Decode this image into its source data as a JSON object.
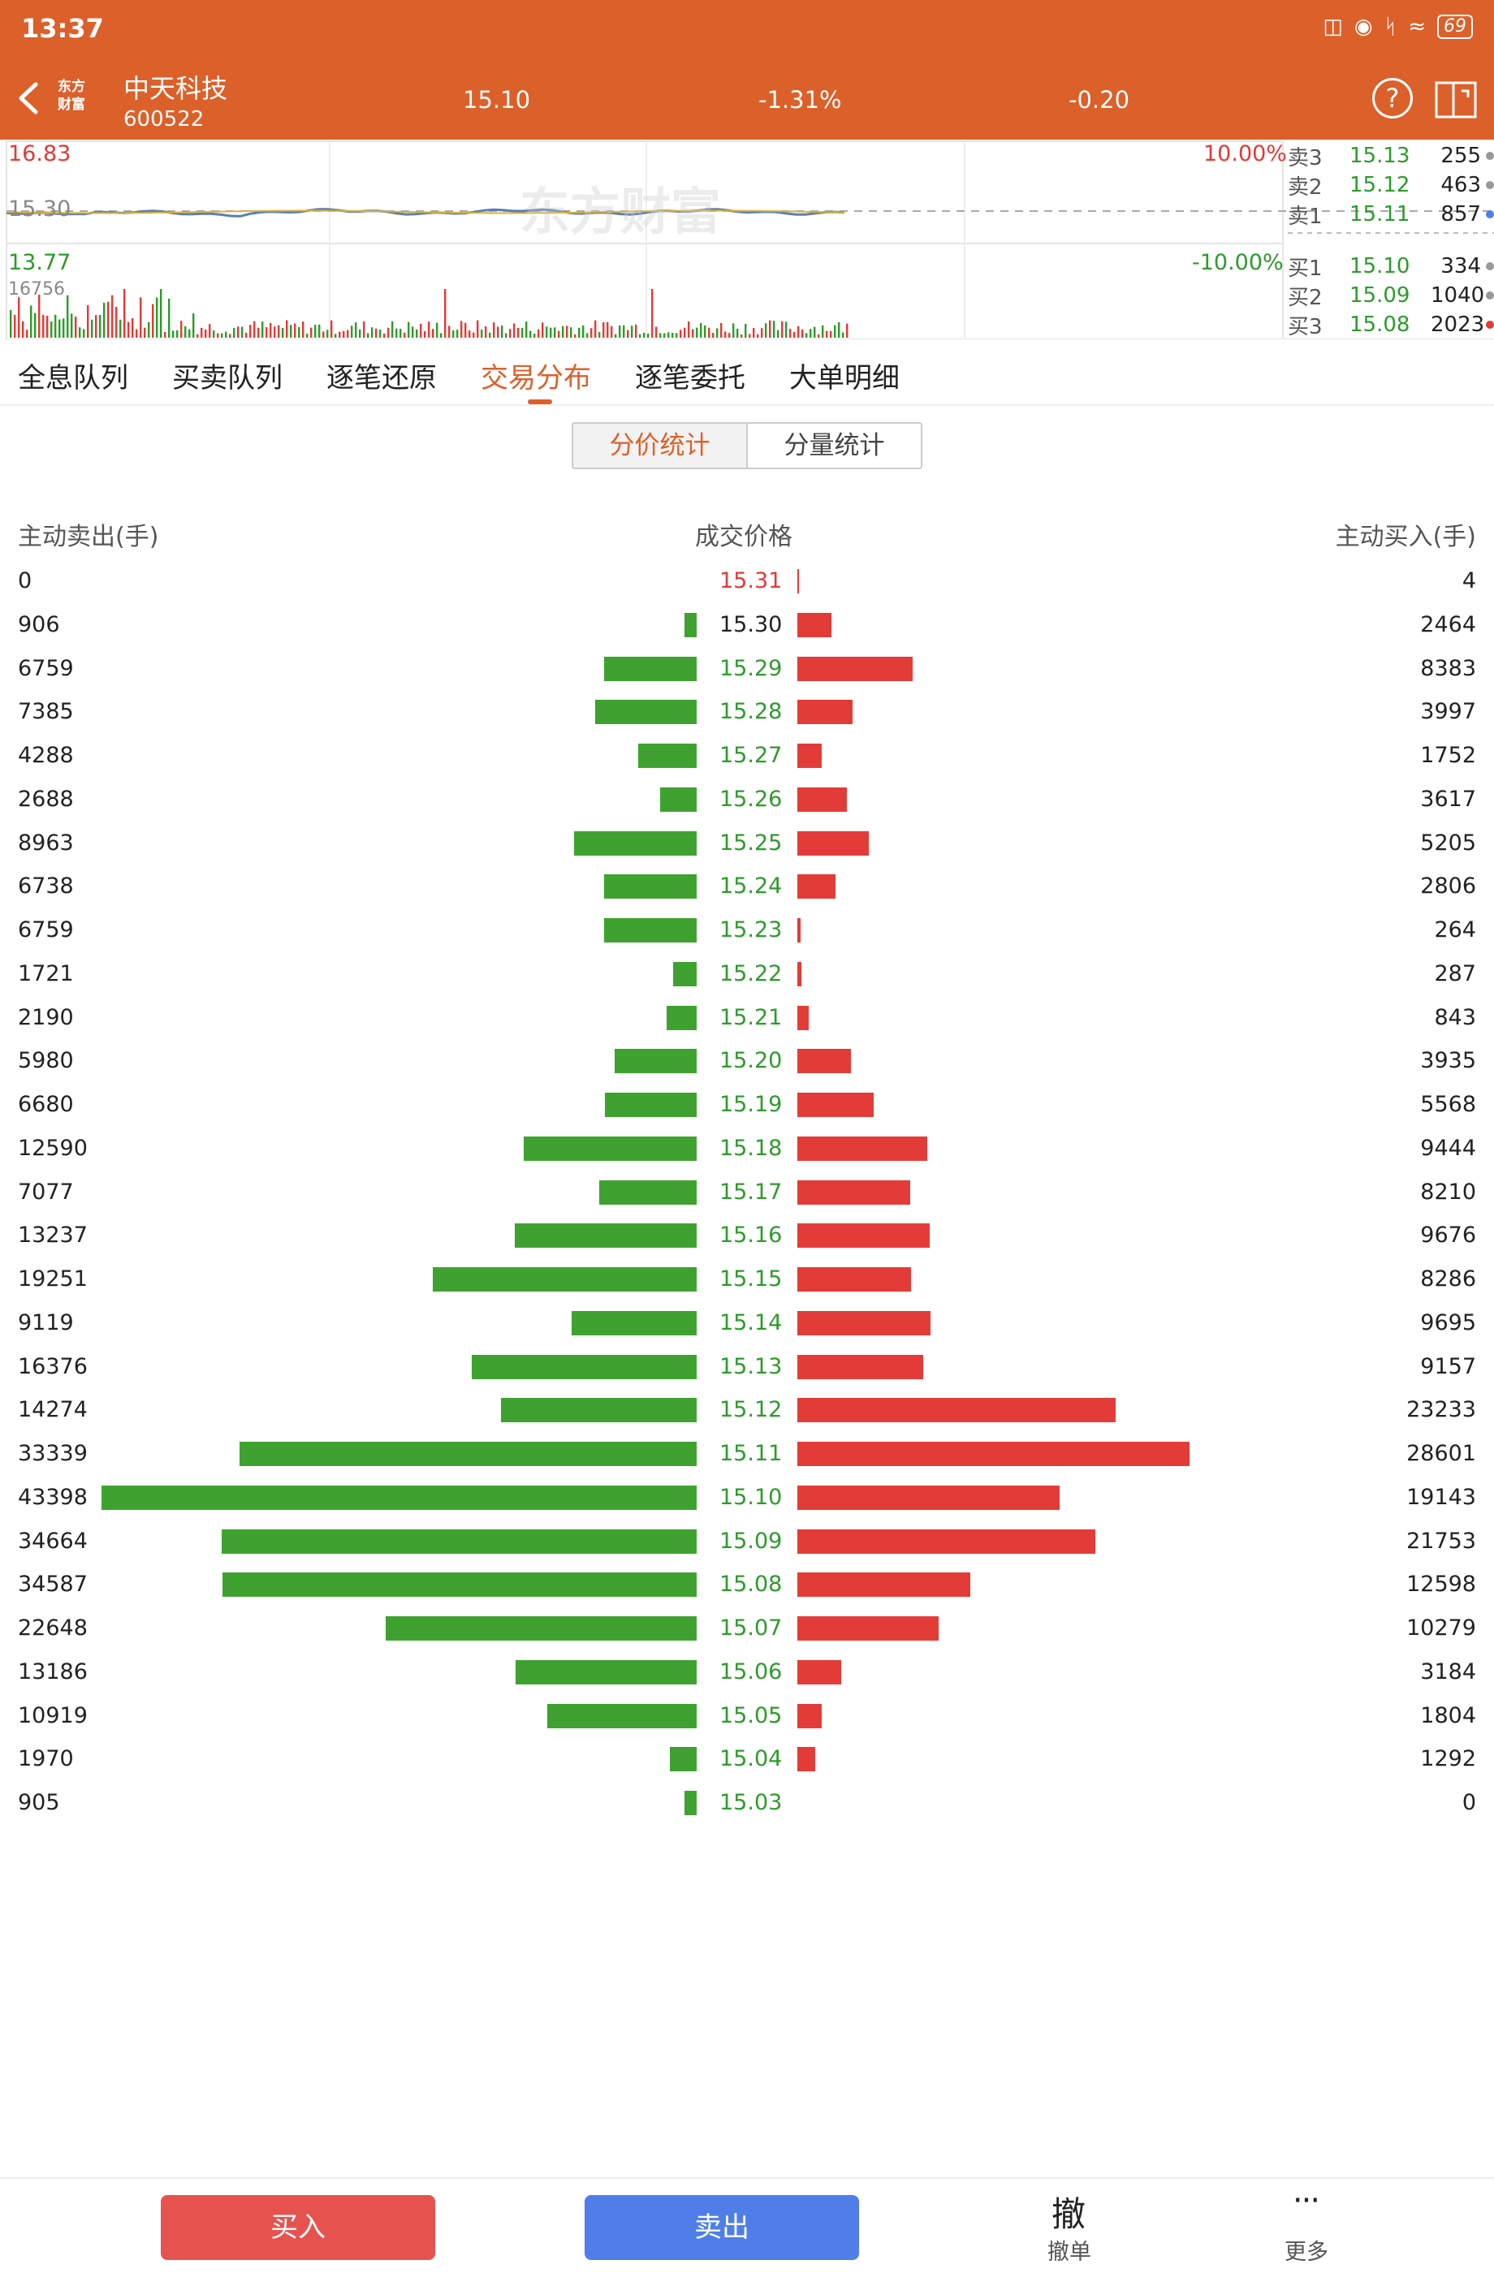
{
  "status_bar": {
    "time": "13:37",
    "battery": "69"
  },
  "header": {
    "logo_line1": "东方",
    "logo_line2": "财富",
    "stock_name": "中天科技",
    "stock_code": "600522",
    "price": "15.10",
    "change_pct": "-1.31%",
    "change": "-0.20"
  },
  "mini_chart": {
    "limit_up": "16.83",
    "limit_up_pct": "10.00%",
    "prev_close": "15.30",
    "limit_down": "13.77",
    "limit_down_pct": "-10.00%",
    "volume_max": "16756",
    "watermark": "东方财富"
  },
  "order_book": {
    "asks": [
      {
        "label": "卖3",
        "price": "15.13",
        "volume": "255",
        "dot": "#999999"
      },
      {
        "label": "卖2",
        "price": "15.12",
        "volume": "463",
        "dot": "#999999"
      },
      {
        "label": "卖1",
        "price": "15.11",
        "volume": "857",
        "dot": "#4f7ee8"
      }
    ],
    "bids": [
      {
        "label": "买1",
        "price": "15.10",
        "volume": "334",
        "dot": "#999999"
      },
      {
        "label": "买2",
        "price": "15.09",
        "volume": "1040",
        "dot": "#999999"
      },
      {
        "label": "买3",
        "price": "15.08",
        "volume": "2023",
        "dot": "#e23a36"
      }
    ]
  },
  "tabs": [
    "全息队列",
    "买卖队列",
    "逐笔还原",
    "交易分布",
    "逐笔委托",
    "大单明细"
  ],
  "active_tab": 3,
  "segment": {
    "by_price": "分价统计",
    "by_volume": "分量统计"
  },
  "distribution": {
    "sell_header": "主动卖出(手)",
    "price_header": "成交价格",
    "buy_header": "主动买入(手)",
    "sell_color": "#3fa230",
    "buy_color": "#e33c38",
    "rows": [
      {
        "price": "15.31",
        "sell": 0,
        "buy": 4,
        "price_color": "red"
      },
      {
        "price": "15.30",
        "sell": 906,
        "buy": 2464,
        "price_color": "black"
      },
      {
        "price": "15.29",
        "sell": 6759,
        "buy": 8383,
        "price_color": "green"
      },
      {
        "price": "15.28",
        "sell": 7385,
        "buy": 3997,
        "price_color": "green"
      },
      {
        "price": "15.27",
        "sell": 4288,
        "buy": 1752,
        "price_color": "green"
      },
      {
        "price": "15.26",
        "sell": 2688,
        "buy": 3617,
        "price_color": "green"
      },
      {
        "price": "15.25",
        "sell": 8963,
        "buy": 5205,
        "price_color": "green"
      },
      {
        "price": "15.24",
        "sell": 6738,
        "buy": 2806,
        "price_color": "green"
      },
      {
        "price": "15.23",
        "sell": 6759,
        "buy": 264,
        "price_color": "green"
      },
      {
        "price": "15.22",
        "sell": 1721,
        "buy": 287,
        "price_color": "green"
      },
      {
        "price": "15.21",
        "sell": 2190,
        "buy": 843,
        "price_color": "green"
      },
      {
        "price": "15.20",
        "sell": 5980,
        "buy": 3935,
        "price_color": "green"
      },
      {
        "price": "15.19",
        "sell": 6680,
        "buy": 5568,
        "price_color": "green"
      },
      {
        "price": "15.18",
        "sell": 12590,
        "buy": 9444,
        "price_color": "green"
      },
      {
        "price": "15.17",
        "sell": 7077,
        "buy": 8210,
        "price_color": "green"
      },
      {
        "price": "15.16",
        "sell": 13237,
        "buy": 9676,
        "price_color": "green"
      },
      {
        "price": "15.15",
        "sell": 19251,
        "buy": 8286,
        "price_color": "green"
      },
      {
        "price": "15.14",
        "sell": 9119,
        "buy": 9695,
        "price_color": "green"
      },
      {
        "price": "15.13",
        "sell": 16376,
        "buy": 9157,
        "price_color": "green"
      },
      {
        "price": "15.12",
        "sell": 14274,
        "buy": 23233,
        "price_color": "green"
      },
      {
        "price": "15.11",
        "sell": 33339,
        "buy": 28601,
        "price_color": "green"
      },
      {
        "price": "15.10",
        "sell": 43398,
        "buy": 19143,
        "price_color": "green"
      },
      {
        "price": "15.09",
        "sell": 34664,
        "buy": 21753,
        "price_color": "green"
      },
      {
        "price": "15.08",
        "sell": 34587,
        "buy": 12598,
        "price_color": "green"
      },
      {
        "price": "15.07",
        "sell": 22648,
        "buy": 10279,
        "price_color": "green"
      },
      {
        "price": "15.06",
        "sell": 13186,
        "buy": 3184,
        "price_color": "green"
      },
      {
        "price": "15.05",
        "sell": 10919,
        "buy": 1804,
        "price_color": "green"
      },
      {
        "price": "15.04",
        "sell": 1970,
        "buy": 1292,
        "price_color": "green"
      },
      {
        "price": "15.03",
        "sell": 905,
        "buy": 0,
        "price_color": "green"
      }
    ]
  },
  "bottom_bar": {
    "buy": "买入",
    "sell": "卖出",
    "cancel_glyph": "撤",
    "cancel": "撤单",
    "more_glyph": "···",
    "more": "更多"
  }
}
